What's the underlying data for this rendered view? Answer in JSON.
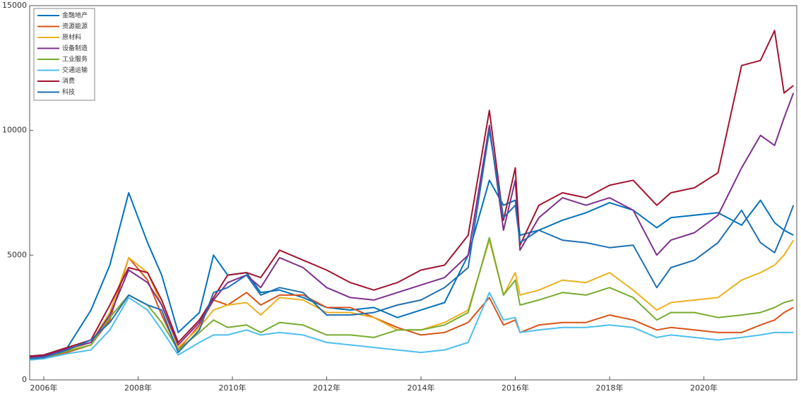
{
  "chart_data": {
    "type": "line",
    "legend": "upper left",
    "grid": false,
    "x": [
      2005.7,
      2006.0,
      2006.5,
      2007.0,
      2007.4,
      2007.8,
      2008.2,
      2008.5,
      2008.85,
      2009.3,
      2009.6,
      2009.9,
      2010.3,
      2010.6,
      2011.0,
      2011.5,
      2012.0,
      2012.5,
      2013.0,
      2013.5,
      2014.0,
      2014.5,
      2015.0,
      2015.45,
      2015.75,
      2016.0,
      2016.1,
      2016.5,
      2017.0,
      2017.5,
      2018.0,
      2018.5,
      2019.0,
      2019.3,
      2019.8,
      2020.3,
      2020.8,
      2021.2,
      2021.5,
      2021.7,
      2021.9
    ],
    "xlim": [
      2005.7,
      2021.97
    ],
    "xticks": [
      {
        "value": 2006,
        "label": "2006年"
      },
      {
        "value": 2008,
        "label": "2008年"
      },
      {
        "value": 2010,
        "label": "2010年"
      },
      {
        "value": 2012,
        "label": "2012年"
      },
      {
        "value": 2014,
        "label": "2014年"
      },
      {
        "value": 2016,
        "label": "2016年"
      },
      {
        "value": 2018,
        "label": "2018年"
      },
      {
        "value": 2020,
        "label": "2020年"
      }
    ],
    "ylim": [
      0,
      15000
    ],
    "yticks": [
      0,
      5000,
      10000,
      15000
    ],
    "series": [
      {
        "name": "金融地产",
        "color": "#0072bd",
        "values": [
          950,
          1000,
          1300,
          2800,
          4600,
          7500,
          5500,
          4200,
          1900,
          2700,
          5000,
          4200,
          4300,
          3500,
          3600,
          3300,
          2900,
          2800,
          2900,
          2500,
          2800,
          3100,
          5000,
          8000,
          7000,
          7200,
          5800,
          6000,
          6400,
          6700,
          7100,
          6800,
          6100,
          6500,
          6600,
          6700,
          6200,
          7200,
          6300,
          6000,
          5800
        ]
      },
      {
        "name": "资源能源",
        "color": "#d95319",
        "values": [
          800,
          850,
          1100,
          1400,
          2400,
          4900,
          4000,
          2600,
          1200,
          2200,
          3200,
          3000,
          3500,
          3000,
          3400,
          3400,
          2900,
          2900,
          2500,
          2100,
          1800,
          1900,
          2300,
          3300,
          2200,
          2400,
          1900,
          2200,
          2300,
          2300,
          2600,
          2400,
          2000,
          2100,
          2000,
          1900,
          1900,
          2200,
          2400,
          2700,
          2900
        ]
      },
      {
        "name": "原材料",
        "color": "#edb120",
        "values": [
          900,
          950,
          1200,
          1500,
          2700,
          4900,
          4300,
          3000,
          1300,
          2100,
          2800,
          3000,
          3100,
          2600,
          3300,
          3200,
          2700,
          2700,
          2500,
          2000,
          2000,
          2300,
          2800,
          5600,
          3400,
          4300,
          3400,
          3600,
          4000,
          3900,
          4300,
          3600,
          2800,
          3100,
          3200,
          3300,
          4000,
          4300,
          4600,
          5000,
          5600
        ]
      },
      {
        "name": "设备制造",
        "color": "#7e2f8e",
        "values": [
          900,
          950,
          1250,
          1500,
          2600,
          4400,
          3900,
          3000,
          1400,
          2300,
          3200,
          3900,
          4200,
          3700,
          4900,
          4500,
          3700,
          3300,
          3200,
          3500,
          3800,
          4100,
          5000,
          10200,
          6000,
          8000,
          5200,
          6500,
          7300,
          7000,
          7300,
          6800,
          5000,
          5600,
          5900,
          6600,
          8500,
          9800,
          9400,
          10500,
          11500
        ]
      },
      {
        "name": "工业服务",
        "color": "#77ac30",
        "values": [
          850,
          900,
          1150,
          1400,
          2500,
          3400,
          3000,
          2300,
          1200,
          1900,
          2400,
          2100,
          2200,
          1900,
          2300,
          2200,
          1800,
          1800,
          1700,
          2000,
          2000,
          2200,
          2700,
          5700,
          3400,
          4000,
          3000,
          3200,
          3500,
          3400,
          3700,
          3300,
          2400,
          2700,
          2700,
          2500,
          2600,
          2700,
          2900,
          3100,
          3200
        ]
      },
      {
        "name": "交通运输",
        "color": "#4dbeee",
        "values": [
          800,
          850,
          1050,
          1200,
          2000,
          3300,
          2800,
          2000,
          1000,
          1500,
          1800,
          1800,
          2000,
          1800,
          1900,
          1800,
          1500,
          1400,
          1300,
          1200,
          1100,
          1200,
          1500,
          3500,
          2400,
          2500,
          1900,
          2000,
          2100,
          2100,
          2200,
          2100,
          1700,
          1800,
          1700,
          1600,
          1700,
          1800,
          1900,
          1900,
          1900
        ]
      },
      {
        "name": "消费",
        "color": "#a2142f",
        "values": [
          950,
          1000,
          1300,
          1600,
          3000,
          4500,
          4300,
          3200,
          1500,
          2400,
          3300,
          4200,
          4300,
          4100,
          5200,
          4800,
          4400,
          3900,
          3600,
          3900,
          4400,
          4600,
          5800,
          10800,
          6400,
          8500,
          5400,
          7000,
          7500,
          7300,
          7800,
          8000,
          7000,
          7500,
          7700,
          8300,
          12600,
          12800,
          14000,
          11500,
          11800
        ]
      },
      {
        "name": "科技",
        "color": "#1f6fb2",
        "values": [
          850,
          900,
          1200,
          1600,
          2300,
          3400,
          3000,
          2800,
          1100,
          2000,
          3500,
          3700,
          4200,
          3400,
          3700,
          3500,
          2600,
          2600,
          2700,
          3000,
          3200,
          3700,
          4500,
          10000,
          6500,
          7000,
          5500,
          6000,
          5600,
          5500,
          5300,
          5400,
          3700,
          4500,
          4800,
          5500,
          6800,
          5500,
          5100,
          6000,
          7000
        ]
      }
    ]
  }
}
